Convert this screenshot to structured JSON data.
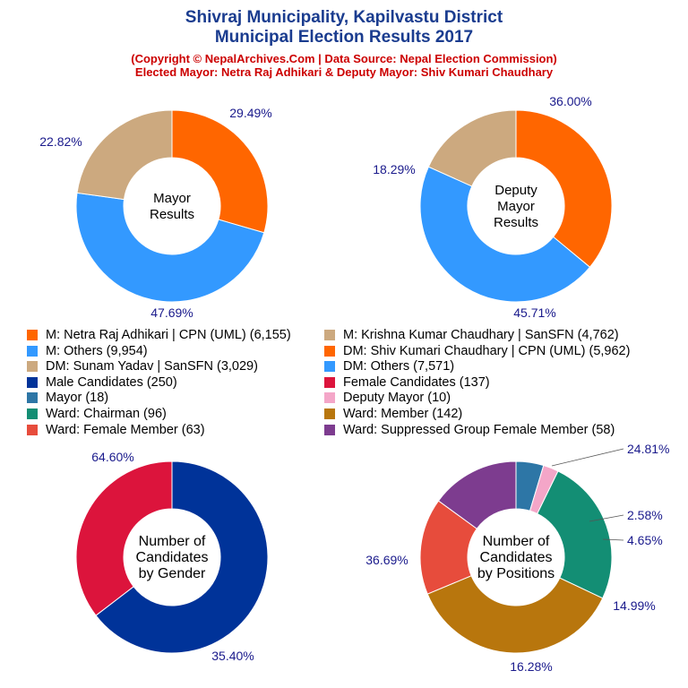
{
  "header": {
    "title_line1": "Shivraj Municipality, Kapilvastu District",
    "title_line2": "Municipal Election Results 2017",
    "copyright": "(Copyright © NepalArchives.Com | Data Source: Nepal Election Commission)",
    "elected": "Elected Mayor: Netra Raj Adhikari & Deputy Mayor: Shiv Kumari Chaudhary"
  },
  "colors": {
    "orange": "#ff6600",
    "blue": "#3399ff",
    "tan": "#cca97f",
    "navy": "#003399",
    "crimson": "#dc143c",
    "steel": "#2d76a6",
    "pink": "#f4a6c8",
    "green": "#138e74",
    "brown": "#b8760d",
    "red": "#e74c3c",
    "purple": "#7d3c8f",
    "label": "#1a1a8c"
  },
  "legend": [
    {
      "label": "M: Netra Raj Adhikari | CPN (UML) (6,155)",
      "color": "#ff6600"
    },
    {
      "label": "M: Krishna Kumar Chaudhary | SanSFN (4,762)",
      "color": "#cca97f"
    },
    {
      "label": "M: Others (9,954)",
      "color": "#3399ff"
    },
    {
      "label": "DM: Shiv Kumari Chaudhary | CPN (UML) (5,962)",
      "color": "#ff6600"
    },
    {
      "label": "DM: Sunam Yadav | SanSFN (3,029)",
      "color": "#cca97f"
    },
    {
      "label": "DM: Others (7,571)",
      "color": "#3399ff"
    },
    {
      "label": "Male Candidates (250)",
      "color": "#003399"
    },
    {
      "label": "Female Candidates (137)",
      "color": "#dc143c"
    },
    {
      "label": "Mayor (18)",
      "color": "#2d76a6"
    },
    {
      "label": "Deputy Mayor (10)",
      "color": "#f4a6c8"
    },
    {
      "label": "Ward: Chairman (96)",
      "color": "#138e74"
    },
    {
      "label": "Ward: Member (142)",
      "color": "#b8760d"
    },
    {
      "label": "Ward: Female Member (63)",
      "color": "#e74c3c"
    },
    {
      "label": "Ward: Suppressed Group Female Member (58)",
      "color": "#7d3c8f"
    }
  ],
  "chart_data": [
    {
      "type": "pie",
      "center_label": [
        "Mayor",
        "Results"
      ],
      "slices": [
        {
          "name": "M: Netra Raj Adhikari | CPN (UML)",
          "value": 6155,
          "percent_label": "29.49%",
          "color": "#ff6600"
        },
        {
          "name": "M: Others",
          "value": 9954,
          "percent_label": "47.69%",
          "color": "#3399ff"
        },
        {
          "name": "M: Krishna Kumar Chaudhary | SanSFN",
          "value": 4762,
          "percent_label": "22.82%",
          "color": "#cca97f"
        }
      ]
    },
    {
      "type": "pie",
      "center_label": [
        "Deputy",
        "Mayor",
        "Results"
      ],
      "slices": [
        {
          "name": "DM: Shiv Kumari Chaudhary | CPN (UML)",
          "value": 5962,
          "percent_label": "36.00%",
          "color": "#ff6600"
        },
        {
          "name": "DM: Others",
          "value": 7571,
          "percent_label": "45.71%",
          "color": "#3399ff"
        },
        {
          "name": "DM: Sunam Yadav | SanSFN",
          "value": 3029,
          "percent_label": "18.29%",
          "color": "#cca97f"
        }
      ]
    },
    {
      "type": "pie",
      "center_label": [
        "Number of",
        "Candidates",
        "by Gender"
      ],
      "slices": [
        {
          "name": "Male Candidates",
          "value": 250,
          "percent_label": "64.60%",
          "color": "#003399"
        },
        {
          "name": "Female Candidates",
          "value": 137,
          "percent_label": "35.40%",
          "color": "#dc143c"
        }
      ]
    },
    {
      "type": "pie",
      "center_label": [
        "Number of",
        "Candidates",
        "by Positions"
      ],
      "slices": [
        {
          "name": "Mayor",
          "value": 18,
          "percent_label": "4.65%",
          "color": "#2d76a6"
        },
        {
          "name": "Deputy Mayor",
          "value": 10,
          "percent_label": "2.58%",
          "color": "#f4a6c8"
        },
        {
          "name": "Ward: Chairman",
          "value": 96,
          "percent_label": "24.81%",
          "color": "#138e74"
        },
        {
          "name": "Ward: Member",
          "value": 142,
          "percent_label": "36.69%",
          "color": "#b8760d"
        },
        {
          "name": "Ward: Female Member",
          "value": 63,
          "percent_label": "16.28%",
          "color": "#e74c3c"
        },
        {
          "name": "Ward: Suppressed Group Female Member",
          "value": 58,
          "percent_label": "14.99%",
          "color": "#7d3c8f"
        }
      ]
    }
  ]
}
